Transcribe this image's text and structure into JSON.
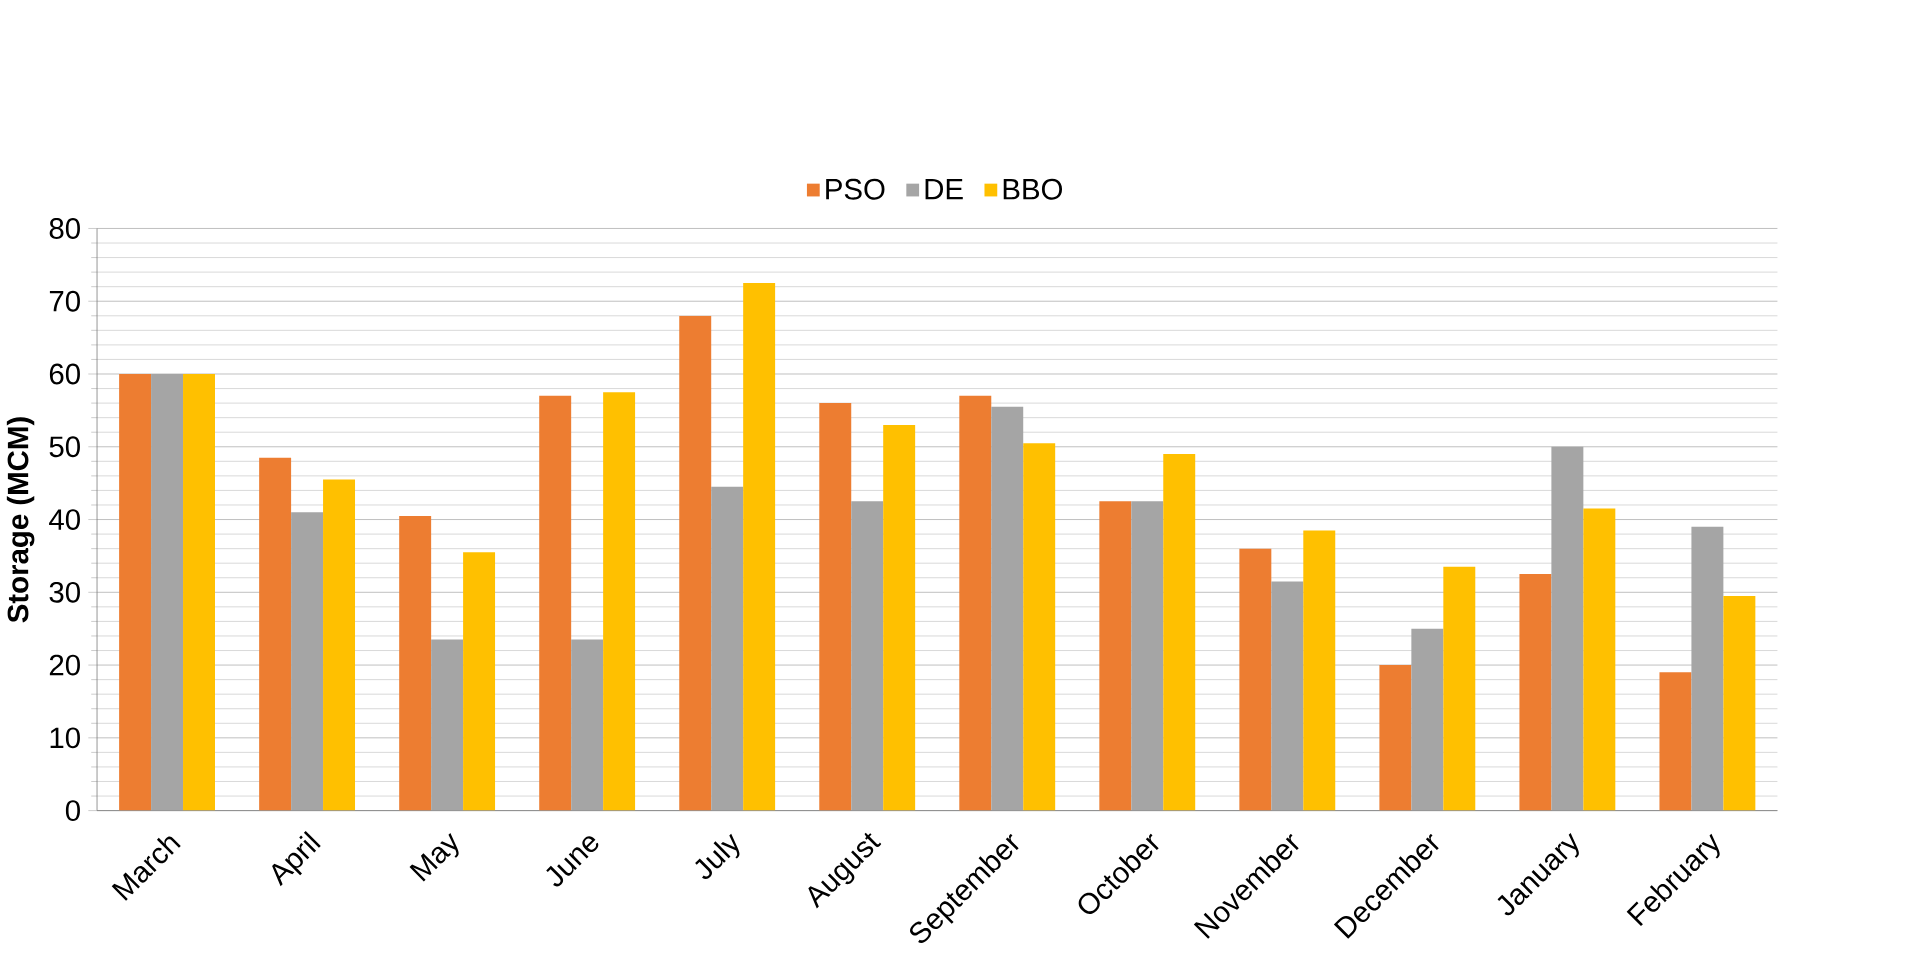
{
  "chart_data": {
    "type": "bar",
    "ylabel": "Storage (MCM)",
    "categories": [
      "March",
      "April",
      "May",
      "June",
      "July",
      "August",
      "September",
      "October",
      "November",
      "December",
      "January",
      "February"
    ],
    "series": [
      {
        "name": "PSO",
        "color": "#ed7d31",
        "values": [
          60,
          48.5,
          40.5,
          57,
          68,
          56,
          57,
          42.5,
          36,
          20,
          32.5,
          19
        ]
      },
      {
        "name": "DE",
        "color": "#a5a5a5",
        "values": [
          60,
          41,
          23.5,
          23.5,
          44.5,
          42.5,
          55.5,
          42.5,
          31.5,
          25,
          50,
          39
        ]
      },
      {
        "name": "BBO",
        "color": "#ffc000",
        "values": [
          60,
          45.5,
          35.5,
          57.5,
          72.5,
          53,
          50.5,
          49,
          38.5,
          33.5,
          41.5,
          29.5
        ]
      }
    ],
    "ylim": [
      0,
      80
    ],
    "yticks": [
      0,
      10,
      20,
      30,
      40,
      50,
      60,
      70,
      80
    ],
    "grid": "y",
    "legend": "top"
  }
}
